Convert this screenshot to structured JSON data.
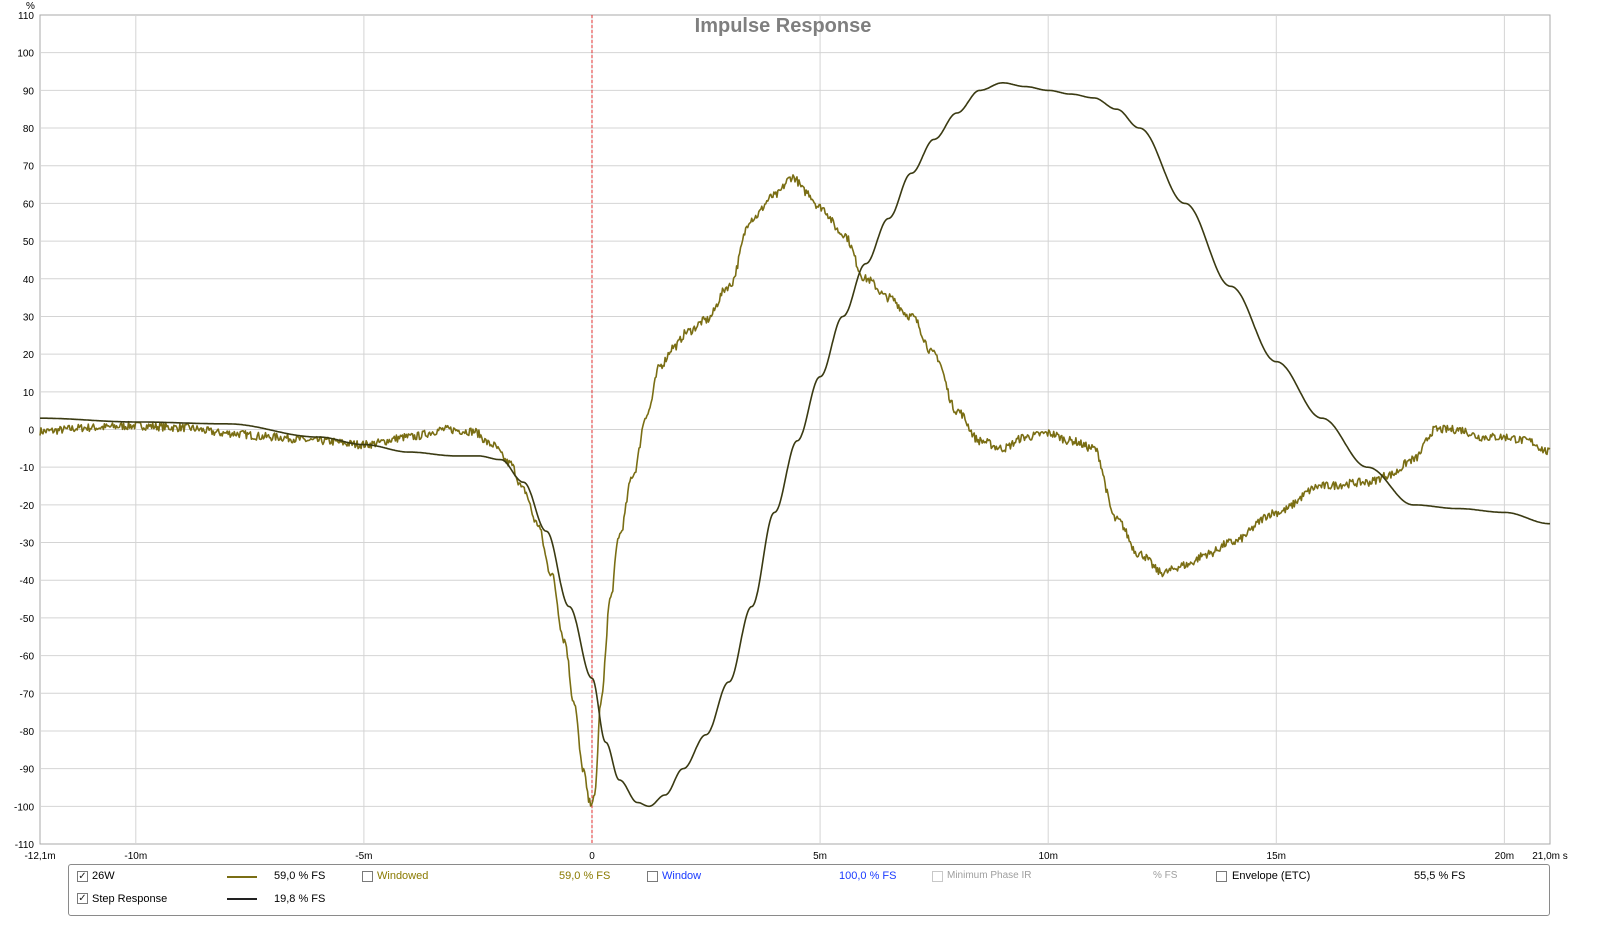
{
  "chart_data": {
    "type": "line",
    "title": "Impulse Response",
    "y_unit": "%",
    "x_unit": "s",
    "xlim": [
      -12.1,
      21.0
    ],
    "ylim": [
      -110,
      110
    ],
    "x_ticks": [
      {
        "v": -12.1,
        "label": "-12,1m"
      },
      {
        "v": -10,
        "label": "-10m"
      },
      {
        "v": -5,
        "label": "-5m"
      },
      {
        "v": 0,
        "label": "0"
      },
      {
        "v": 5,
        "label": "5m"
      },
      {
        "v": 10,
        "label": "10m"
      },
      {
        "v": 15,
        "label": "15m"
      },
      {
        "v": 20,
        "label": "20m"
      },
      {
        "v": 21.0,
        "label": "21,0m s"
      }
    ],
    "y_ticks": [
      110,
      100,
      90,
      80,
      70,
      60,
      50,
      40,
      30,
      20,
      10,
      0,
      -10,
      -20,
      -30,
      -40,
      -50,
      -60,
      -70,
      -80,
      -90,
      -100,
      -110
    ],
    "marker_x": 0,
    "grid": true,
    "series": [
      {
        "name": "26W",
        "color": "#7a6e14",
        "noisy": true,
        "x": [
          -12.1,
          -11,
          -10,
          -9,
          -8,
          -7,
          -6,
          -5,
          -4,
          -3.2,
          -2.6,
          -2.2,
          -1.8,
          -1.5,
          -1.2,
          -0.9,
          -0.6,
          -0.4,
          -0.2,
          -0.05,
          0.05,
          0.2,
          0.4,
          0.6,
          0.9,
          1.2,
          1.5,
          1.8,
          2.1,
          2.5,
          3,
          3.5,
          4,
          4.4,
          4.7,
          5,
          5.5,
          6,
          6.5,
          7,
          7.5,
          8,
          8.5,
          9,
          9.5,
          10,
          10.5,
          11,
          11.5,
          12,
          12.5,
          13,
          13.5,
          14,
          15,
          16,
          17,
          17.5,
          18,
          18.5,
          19,
          19.5,
          20,
          20.5,
          21.0
        ],
        "y": [
          -0.5,
          0.5,
          1,
          0.5,
          -1,
          -2,
          -3,
          -4,
          -2,
          0,
          -0.5,
          -4,
          -9,
          -16,
          -25,
          -38,
          -56,
          -72,
          -90,
          -99,
          -98,
          -72,
          -45,
          -28,
          -12,
          4,
          17,
          22,
          26,
          29,
          38,
          56,
          62,
          67,
          63,
          59,
          52,
          40,
          35,
          30,
          20,
          5,
          -3,
          -5,
          -2,
          -1,
          -3,
          -5,
          -24,
          -33,
          -38,
          -36,
          -33,
          -30,
          -22,
          -15,
          -14,
          -12,
          -8,
          0,
          0,
          -2,
          -2,
          -3,
          -6
        ]
      },
      {
        "name": "Step Response",
        "color": "#3a3a12",
        "noisy": false,
        "x": [
          -12.1,
          -10,
          -8,
          -6,
          -5,
          -4,
          -3,
          -2.5,
          -2,
          -1.5,
          -1,
          -0.5,
          0,
          0.3,
          0.6,
          1,
          1.25,
          1.6,
          2,
          2.5,
          3,
          3.5,
          4,
          4.5,
          5,
          5.5,
          6,
          6.5,
          7,
          7.5,
          8,
          8.5,
          9,
          9.5,
          10,
          10.5,
          11,
          11.5,
          12,
          13,
          14,
          15,
          16,
          17,
          18,
          19,
          20,
          21.0
        ],
        "y": [
          3,
          2,
          1.5,
          -2,
          -4,
          -6,
          -7,
          -7,
          -8,
          -14,
          -27,
          -47,
          -66,
          -83,
          -93,
          -99,
          -100,
          -97,
          -90,
          -81,
          -67,
          -47,
          -22,
          -3,
          14,
          30,
          44,
          56,
          68,
          77,
          84,
          90,
          92,
          91,
          90,
          89,
          88,
          85,
          80,
          60,
          38,
          18,
          3,
          -10,
          -20,
          -21,
          -22,
          -25
        ]
      }
    ],
    "legend": {
      "rows": [
        [
          {
            "label": "26W",
            "checked": true,
            "value": "59,0 % FS",
            "swatch": "#7a6e14",
            "label_color": "#000000",
            "value_color": "#000000"
          },
          {
            "label": "Windowed",
            "checked": false,
            "value": "59,0 % FS",
            "label_color": "#8a7a00",
            "value_color": "#8a7a00"
          },
          {
            "label": "Window",
            "checked": false,
            "value": "100,0 % FS",
            "label_color": "#1a3aff",
            "value_color": "#1a3aff"
          },
          {
            "label": "Minimum Phase IR",
            "checked": false,
            "value": "% FS",
            "label_color": "#9e9e9e",
            "value_color": "#9e9e9e",
            "disabled": true
          },
          {
            "label": "Envelope (ETC)",
            "checked": false,
            "value": "55,5 % FS",
            "label_color": "#000000",
            "value_color": "#000000"
          }
        ],
        [
          {
            "label": "Step Response",
            "checked": true,
            "value": "19,8 % FS",
            "swatch": "#222222",
            "label_color": "#000000",
            "value_color": "#000000"
          }
        ]
      ]
    }
  }
}
